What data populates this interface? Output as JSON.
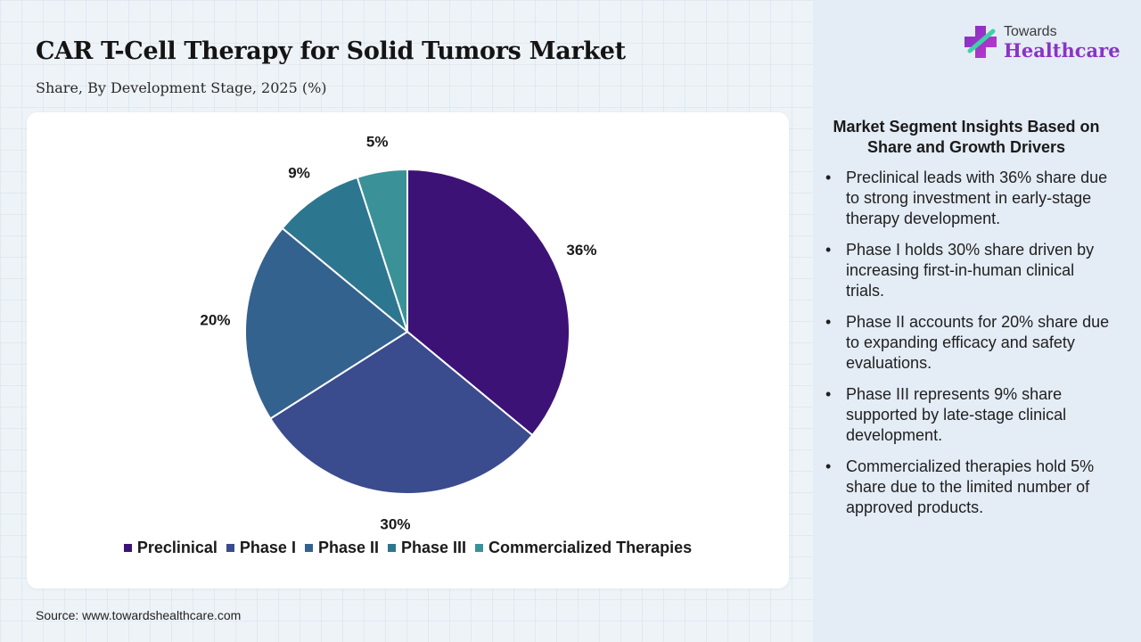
{
  "header": {
    "title": "CAR T-Cell Therapy for Solid Tumors Market",
    "subtitle": "Share, By Development Stage, 2025 (%)"
  },
  "logo": {
    "name": "logo-icon",
    "top_text": "Towards",
    "bottom_text": "Healthcare"
  },
  "chart_data": {
    "type": "pie",
    "title": "",
    "categories": [
      "Preclinical",
      "Phase I",
      "Phase II",
      "Phase III",
      "Commercialized Therapies"
    ],
    "values": [
      36,
      30,
      20,
      9,
      5
    ],
    "labels": [
      "36%",
      "30%",
      "20%",
      "9%",
      "5%"
    ],
    "colors": [
      "#3d1276",
      "#3a4b8e",
      "#34628f",
      "#2d7690",
      "#3a9298"
    ],
    "legend_position": "bottom",
    "start_angle": "12 o'clock",
    "direction": "clockwise"
  },
  "insights": {
    "title": "Market Segment Insights Based on Share and Growth Drivers",
    "items": [
      "Preclinical leads with 36% share due to strong investment in early-stage therapy development.",
      "Phase I holds 30% share driven by increasing first-in-human clinical trials.",
      "Phase II accounts for 20% share due to expanding efficacy and safety evaluations.",
      "Phase III represents 9% share supported by late-stage clinical development.",
      "Commercialized therapies hold 5% share due to the limited number of approved products."
    ]
  },
  "footer": {
    "source": "Source: www.towardshealthcare.com"
  }
}
